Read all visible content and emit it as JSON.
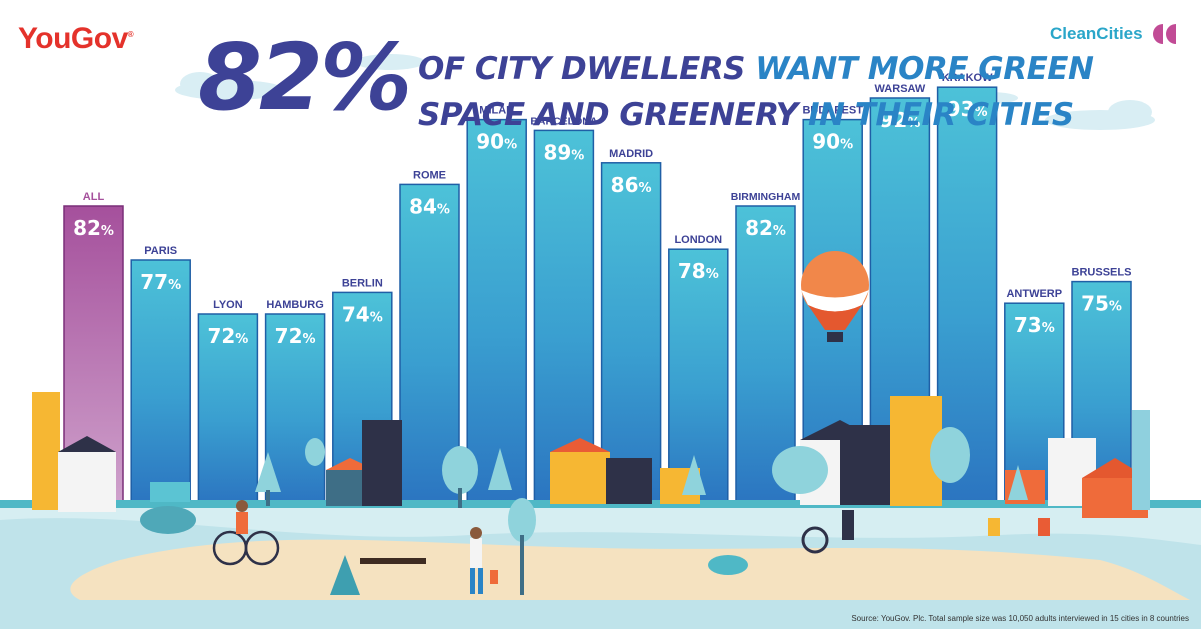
{
  "brand": {
    "logo": "YouGov",
    "partner": "CleanCities"
  },
  "headline": {
    "percent": "82%",
    "line1_a": "OF CITY DWELLERS",
    "line1_b": "WANT MORE GREEN",
    "line2_a": "SPACE AND GREENERY",
    "line2_b": "IN THEIR CITIES"
  },
  "source": "Source: YouGov. Plc. Total sample size was 10,050 adults interviewed in 15 cities in 8 countries",
  "colors": {
    "highlight_bar": "#a5509c",
    "bar": "#3aa0cf",
    "headline_dark": "#3d4296",
    "headline_blue": "#2a84c6",
    "brand_red": "#e4322b"
  },
  "chart_data": {
    "type": "bar",
    "categories": [
      "ALL",
      "PARIS",
      "LYON",
      "HAMBURG",
      "BERLIN",
      "ROME",
      "MILAN",
      "BARCELONA",
      "MADRID",
      "LONDON",
      "BIRMINGHAM",
      "BUDAPEST",
      "WARSAW",
      "KRAKOW",
      "ANTWERP",
      "BRUSSELS"
    ],
    "values": [
      82,
      77,
      72,
      72,
      74,
      84,
      90,
      89,
      86,
      78,
      82,
      90,
      92,
      93,
      73,
      75
    ],
    "value_labels": [
      "82%",
      "77%",
      "72%",
      "72%",
      "74%",
      "84%",
      "90%",
      "89%",
      "86%",
      "78%",
      "82%",
      "90%",
      "92%",
      "93%",
      "73%",
      "75%"
    ],
    "highlight": "ALL",
    "unit": "%"
  }
}
